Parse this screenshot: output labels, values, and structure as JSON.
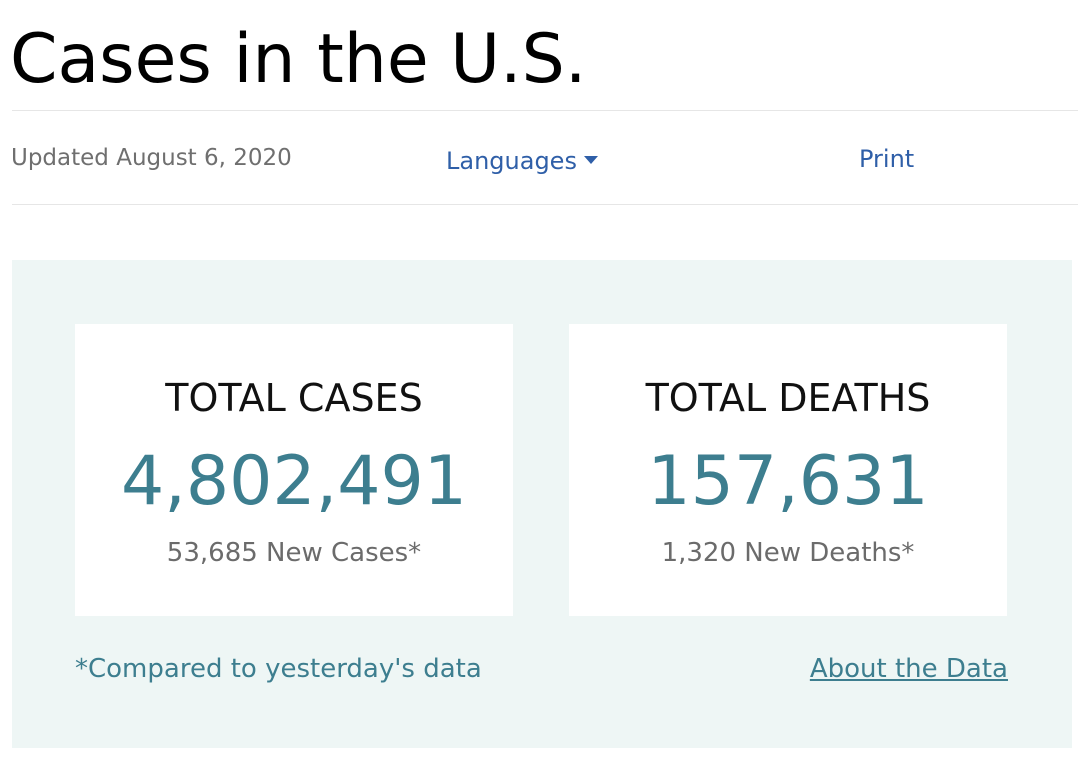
{
  "header": {
    "title": "Cases in the U.S."
  },
  "toolbar": {
    "updated": "Updated August 6, 2020",
    "languages_label": "Languages",
    "print_label": "Print"
  },
  "stats": {
    "cases": {
      "title": "TOTAL CASES",
      "value": "4,802,491",
      "sub": "53,685 New Cases*"
    },
    "deaths": {
      "title": "TOTAL DEATHS",
      "value": "157,631",
      "sub": "1,320 New Deaths*"
    }
  },
  "footer": {
    "footnote": "*Compared to yesterday's data",
    "about_link": "About the Data"
  },
  "icons": {
    "languages_caret": "chevron-down-icon"
  },
  "colors": {
    "accent_teal": "#3d7e8f",
    "link_blue": "#2f5fa8",
    "panel_bg": "#eef6f5"
  }
}
